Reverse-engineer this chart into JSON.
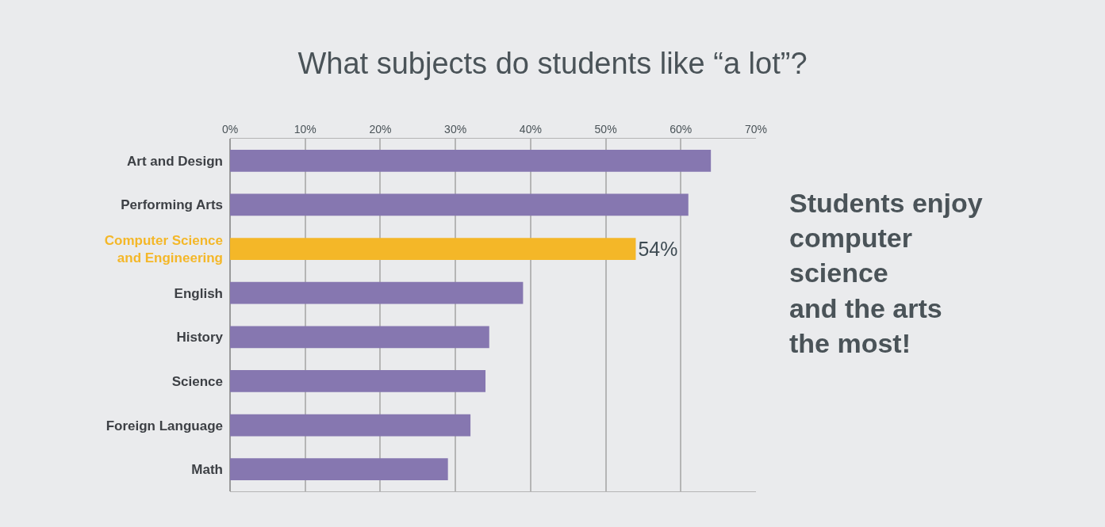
{
  "chart_data": {
    "type": "bar",
    "orientation": "horizontal",
    "title": "What subjects do students like “a lot”?",
    "categories": [
      "Art and Design",
      "Performing Arts",
      "Computer Science\nand Engineering",
      "English",
      "History",
      "Science",
      "Foreign Language",
      "Math"
    ],
    "values": [
      64,
      61,
      54,
      39,
      34.5,
      34,
      32,
      29
    ],
    "colors": [
      "#8677b0",
      "#8677b0",
      "#f4b728",
      "#8677b0",
      "#8677b0",
      "#8677b0",
      "#8677b0",
      "#8677b0"
    ],
    "value_labels": [
      null,
      null,
      "54%",
      null,
      null,
      null,
      null,
      null
    ],
    "xlim": [
      0,
      70
    ],
    "xticks": [
      {
        "value": 0,
        "label": "0%"
      },
      {
        "value": 10,
        "label": "10%"
      },
      {
        "value": 20,
        "label": "20%"
      },
      {
        "value": 30,
        "label": "30%"
      },
      {
        "value": 40,
        "label": "40%"
      },
      {
        "value": 50,
        "label": "50%"
      },
      {
        "value": 60,
        "label": "60%"
      },
      {
        "value": 70,
        "label": "70%"
      }
    ],
    "grid": "x",
    "legend": false,
    "annotations": [
      "Students enjoy\ncomputer\nscience\nand the arts\nthe most!"
    ]
  }
}
